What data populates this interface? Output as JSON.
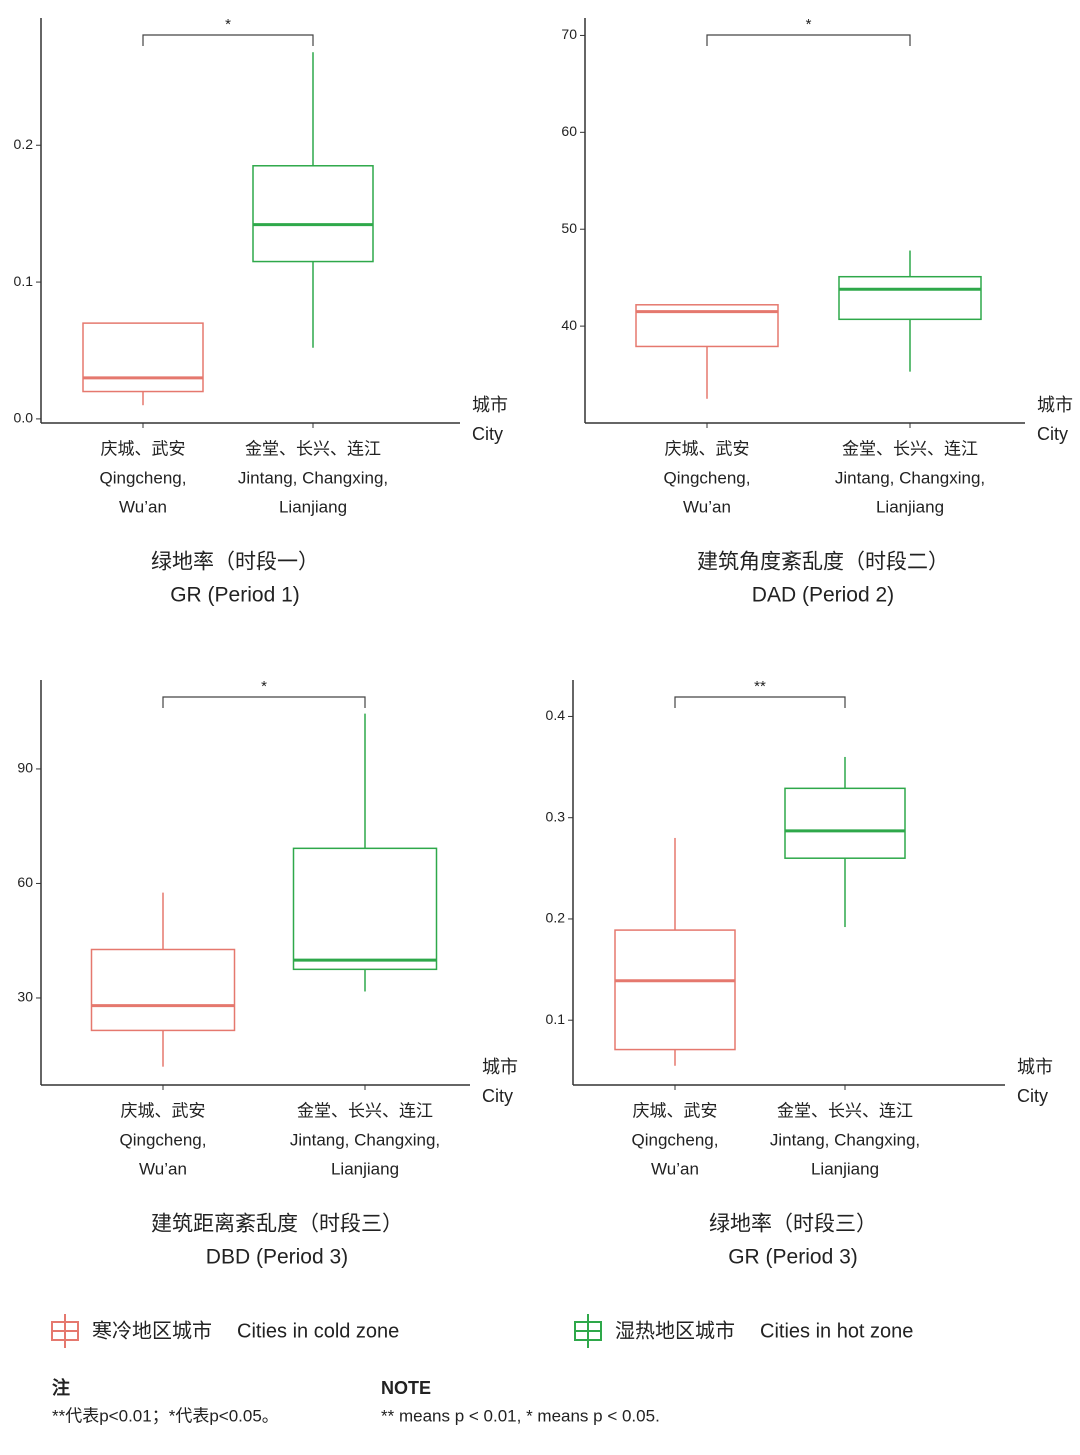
{
  "legend": {
    "items": [
      {
        "name_zh": "寒冷地区城市",
        "name_en": "Cities in cold zone",
        "color": "#e5786e"
      },
      {
        "name_zh": "湿热地区城市",
        "name_en": "Cities in hot zone",
        "color": "#2ea84a"
      }
    ]
  },
  "chart_data": [
    {
      "type": "box",
      "title": "绿地率（时段一）",
      "subtitle": "GR (Period 1)",
      "xlabel": [
        "城市",
        "City"
      ],
      "categories": [
        [
          "庆城、武安",
          "Qingcheng,",
          "Wu’an"
        ],
        [
          "金堂、长兴、连江",
          "Jintang, Changxing,",
          "Lianjiang"
        ]
      ],
      "boxes": [
        {
          "min": 0.01,
          "q1": 0.02,
          "median": 0.03,
          "q3": 0.07,
          "max": 0.07
        },
        {
          "min": 0.052,
          "q1": 0.115,
          "median": 0.142,
          "q3": 0.185,
          "max": 0.268
        }
      ],
      "ylim": [
        -0.003,
        0.293
      ],
      "yticks": [
        {
          "value": 0,
          "label": "0.0"
        },
        0.1,
        0.2
      ],
      "significance": "*"
    },
    {
      "type": "box",
      "title": "建筑角度紊乱度（时段二）",
      "subtitle": "DAD (Period 2)",
      "xlabel": [
        "城市",
        "City"
      ],
      "categories": [
        [
          "庆城、武安",
          "Qingcheng,",
          "Wu’an"
        ],
        [
          "金堂、长兴、连江",
          "Jintang, Changxing,",
          "Lianjiang"
        ]
      ],
      "boxes": [
        {
          "min": 32.5,
          "q1": 37.9,
          "median": 41.5,
          "q3": 42.2,
          "max": 42.2
        },
        {
          "min": 35.3,
          "q1": 40.7,
          "median": 43.8,
          "q3": 45.1,
          "max": 47.8
        }
      ],
      "ylim": [
        30,
        71.8
      ],
      "yticks": [
        40,
        50,
        60,
        70
      ],
      "significance": "*"
    },
    {
      "type": "box",
      "title": "建筑距离紊乱度（时段三）",
      "subtitle": "DBD (Period 3)",
      "xlabel": [
        "城市",
        "City"
      ],
      "categories": [
        [
          "庆城、武安",
          "Qingcheng,",
          "Wu’an"
        ],
        [
          "金堂、长兴、连江",
          "Jintang, Changxing,",
          "Lianjiang"
        ]
      ],
      "boxes": [
        {
          "min": 12.0,
          "q1": 21.5,
          "median": 28.0,
          "q3": 42.7,
          "max": 57.6
        },
        {
          "min": 31.7,
          "q1": 37.5,
          "median": 39.9,
          "q3": 69.2,
          "max": 104.5
        }
      ],
      "ylim": [
        7.2,
        113.3
      ],
      "yticks": [
        30,
        60,
        90
      ],
      "significance": "*"
    },
    {
      "type": "box",
      "title": "绿地率（时段三）",
      "subtitle": "GR (Period 3)",
      "xlabel": [
        "城市",
        "City"
      ],
      "categories": [
        [
          "庆城、武安",
          "Qingcheng,",
          "Wu’an"
        ],
        [
          "金堂、长兴、连江",
          "Jintang, Changxing,",
          "Lianjiang"
        ]
      ],
      "boxes": [
        {
          "min": 0.055,
          "q1": 0.071,
          "median": 0.139,
          "q3": 0.189,
          "max": 0.28
        },
        {
          "min": 0.192,
          "q1": 0.26,
          "median": 0.287,
          "q3": 0.329,
          "max": 0.36
        }
      ],
      "ylim": [
        0.036,
        0.436
      ],
      "yticks": [
        0.1,
        0.2,
        0.3,
        0.4
      ],
      "significance": "**"
    }
  ],
  "notes": {
    "zh_heading": "注",
    "zh_text": "**代表p<0.01；*代表p<0.05。",
    "en_heading": "NOTE",
    "en_text": "** means p < 0.01, * means p < 0.05."
  }
}
